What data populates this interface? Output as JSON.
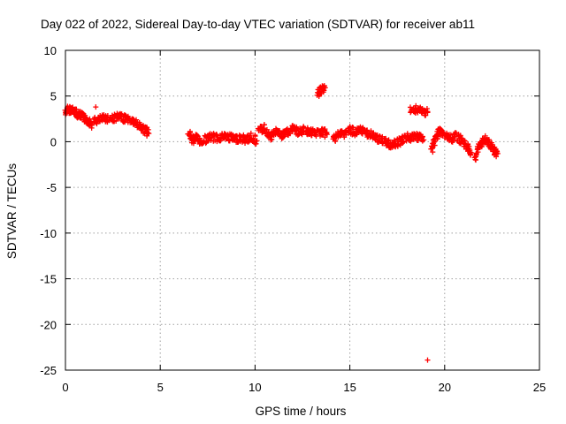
{
  "chart_data": {
    "type": "scatter",
    "title": "Day 022 of 2022, Sidereal Day-to-day VTEC variation (SDTVAR) for receiver ab11",
    "xlabel": "GPS time / hours",
    "ylabel": "SDTVAR / TECUs",
    "xlim": [
      0,
      25
    ],
    "ylim": [
      -25,
      10
    ],
    "x_ticks": [
      0,
      5,
      10,
      15,
      20,
      25
    ],
    "y_ticks": [
      -25,
      -20,
      -15,
      -10,
      -5,
      0,
      5,
      10
    ],
    "grid": true,
    "marker": "+",
    "color": "#ff0000",
    "series": [
      {
        "name": "SDTVAR",
        "segments": [
          {
            "x": [
              0.0,
              0.2,
              0.4,
              0.6,
              0.8,
              1.0,
              1.2,
              1.4
            ],
            "y": [
              3.2,
              3.6,
              3.4,
              3.1,
              2.9,
              2.6,
              2.3,
              1.9
            ]
          },
          {
            "x": [
              1.5,
              1.8,
              2.1,
              2.4,
              2.7,
              3.0,
              3.3,
              3.6,
              3.9,
              4.2,
              4.4
            ],
            "y": [
              2.2,
              2.4,
              2.6,
              2.5,
              2.7,
              2.6,
              2.5,
              2.2,
              1.7,
              1.3,
              0.9
            ]
          },
          {
            "x": [
              6.5,
              6.7,
              6.9,
              7.1,
              7.4,
              7.7,
              8.0,
              8.3,
              8.6,
              8.9,
              9.2,
              9.5,
              9.8,
              10.1
            ],
            "y": [
              0.9,
              0.2,
              0.5,
              0.0,
              0.3,
              0.5,
              0.4,
              0.6,
              0.5,
              0.3,
              0.4,
              0.2,
              0.5,
              0.1
            ]
          },
          {
            "x": [
              10.2,
              10.5,
              10.8,
              11.1,
              11.4,
              11.7,
              12.0,
              12.3,
              12.6,
              12.9,
              13.2,
              13.5,
              13.8
            ],
            "y": [
              1.2,
              1.5,
              0.4,
              1.2,
              0.6,
              1.0,
              1.4,
              1.0,
              1.3,
              1.1,
              0.9,
              1.1,
              0.8
            ]
          },
          {
            "x": [
              13.3,
              13.5,
              13.7
            ],
            "y": [
              5.2,
              5.6,
              5.9
            ]
          },
          {
            "x": [
              14.1,
              14.4,
              14.7,
              15.0,
              15.3,
              15.6,
              15.9,
              16.2,
              16.5,
              16.8,
              17.1,
              17.4,
              17.7,
              18.0,
              18.3,
              18.6,
              18.9
            ],
            "y": [
              0.3,
              0.8,
              0.9,
              1.3,
              1.0,
              1.2,
              0.9,
              0.7,
              0.3,
              0.0,
              -0.3,
              -0.2,
              0.1,
              0.5,
              0.4,
              0.6,
              0.2
            ]
          },
          {
            "x": [
              18.2,
              18.5,
              18.8,
              19.1
            ],
            "y": [
              3.6,
              3.5,
              3.3,
              3.2
            ]
          },
          {
            "x": [
              19.3,
              19.5,
              19.7,
              20.0,
              20.3,
              20.6,
              20.9,
              21.2,
              21.4
            ],
            "y": [
              -1.0,
              0.2,
              1.2,
              0.8,
              0.3,
              0.6,
              0.1,
              -0.6,
              -1.2
            ]
          },
          {
            "x": [
              21.6,
              21.8,
              22.0,
              22.2,
              22.4,
              22.6,
              22.8
            ],
            "y": [
              -1.8,
              -0.4,
              0.0,
              0.3,
              -0.3,
              -1.0,
              -1.3
            ]
          },
          {
            "x": [
              19.1
            ],
            "y": [
              -23.9
            ]
          },
          {
            "x": [
              1.6
            ],
            "y": [
              3.8
            ]
          }
        ]
      }
    ]
  }
}
